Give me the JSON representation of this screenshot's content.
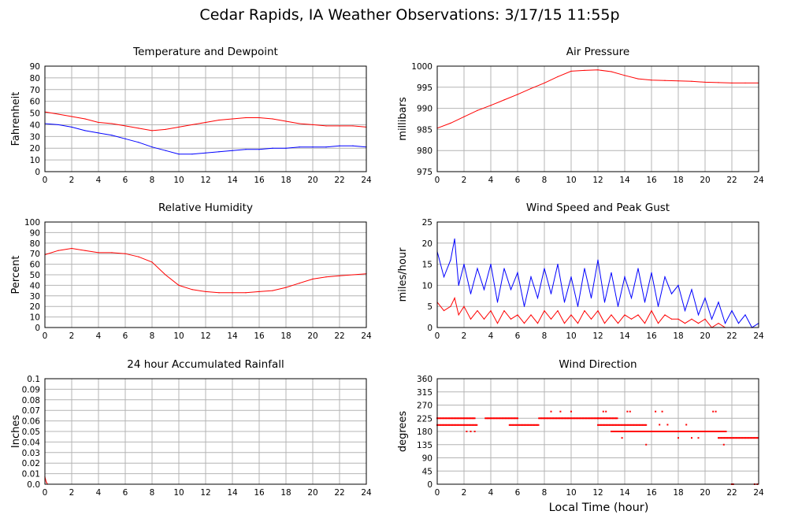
{
  "page": {
    "title": "Cedar Rapids, IA Weather Observations: 3/17/15 11:55p",
    "xlabel": "Local Time (hour)"
  },
  "colors": {
    "red": "#ff0000",
    "blue": "#0000ff",
    "grid": "#b4b4b4",
    "frame": "#000000"
  },
  "chart_data": [
    {
      "id": "temp",
      "type": "line",
      "title": "Temperature and Dewpoint",
      "ylabel": "Fahrenheit",
      "xlim": [
        0,
        24
      ],
      "ylim": [
        0,
        90
      ],
      "xticks": [
        "0",
        "2",
        "4",
        "6",
        "8",
        "10",
        "12",
        "14",
        "16",
        "18",
        "20",
        "22",
        "24"
      ],
      "yticks": [
        "0",
        "10",
        "20",
        "30",
        "40",
        "50",
        "60",
        "70",
        "80",
        "90"
      ],
      "grid": true,
      "series": [
        {
          "color": "#ff0000",
          "x": [
            0,
            1,
            2,
            3,
            4,
            5,
            6,
            7,
            8,
            9,
            10,
            11,
            12,
            13,
            14,
            15,
            16,
            17,
            18,
            19,
            20,
            21,
            22,
            23,
            24
          ],
          "y": [
            51,
            49,
            47,
            45,
            42,
            41,
            39,
            37,
            35,
            36,
            38,
            40,
            42,
            44,
            45,
            46,
            46,
            45,
            43,
            41,
            40,
            39,
            39,
            39,
            38
          ]
        },
        {
          "color": "#0000ff",
          "x": [
            0,
            1,
            2,
            3,
            4,
            5,
            6,
            7,
            8,
            9,
            10,
            11,
            12,
            13,
            14,
            15,
            16,
            17,
            18,
            19,
            20,
            21,
            22,
            23,
            24
          ],
          "y": [
            41,
            40,
            38,
            35,
            33,
            31,
            28,
            25,
            21,
            18,
            15,
            15,
            16,
            17,
            18,
            19,
            19,
            20,
            20,
            21,
            21,
            21,
            22,
            22,
            21
          ]
        }
      ]
    },
    {
      "id": "pressure",
      "type": "line",
      "title": "Air Pressure",
      "ylabel": "millibars",
      "xlim": [
        0,
        24
      ],
      "ylim": [
        975,
        1000
      ],
      "xticks": [
        "0",
        "2",
        "4",
        "6",
        "8",
        "10",
        "12",
        "14",
        "16",
        "18",
        "20",
        "22",
        "24"
      ],
      "yticks": [
        "975",
        "980",
        "985",
        "990",
        "995",
        "1000"
      ],
      "grid": true,
      "series": [
        {
          "color": "#ff0000",
          "x": [
            0,
            1,
            2,
            3,
            4,
            5,
            6,
            7,
            8,
            9,
            10,
            11,
            12,
            13,
            14,
            15,
            16,
            17,
            18,
            19,
            20,
            21,
            22,
            23,
            24
          ],
          "y": [
            985.3,
            986.5,
            988,
            989.5,
            990.7,
            992,
            993.3,
            994.7,
            996,
            997.5,
            998.8,
            999,
            999.1,
            998.7,
            997.8,
            997,
            996.7,
            996.6,
            996.5,
            996.4,
            996.2,
            996.1,
            996,
            996,
            996
          ]
        }
      ]
    },
    {
      "id": "humidity",
      "type": "line",
      "title": "Relative Humidity",
      "ylabel": "Percent",
      "xlim": [
        0,
        24
      ],
      "ylim": [
        0,
        100
      ],
      "xticks": [
        "0",
        "2",
        "4",
        "6",
        "8",
        "10",
        "12",
        "14",
        "16",
        "18",
        "20",
        "22",
        "24"
      ],
      "yticks": [
        "0",
        "10",
        "20",
        "30",
        "40",
        "50",
        "60",
        "70",
        "80",
        "90",
        "100"
      ],
      "grid": true,
      "series": [
        {
          "color": "#ff0000",
          "x": [
            0,
            1,
            2,
            3,
            4,
            5,
            6,
            7,
            8,
            9,
            10,
            11,
            12,
            13,
            14,
            15,
            16,
            17,
            18,
            19,
            20,
            21,
            22,
            23,
            24
          ],
          "y": [
            69,
            73,
            75,
            73,
            71,
            71,
            70,
            67,
            62,
            50,
            40,
            36,
            34,
            33,
            33,
            33,
            34,
            35,
            38,
            42,
            46,
            48,
            49,
            50,
            51
          ]
        }
      ]
    },
    {
      "id": "wind",
      "type": "line",
      "title": "Wind Speed and Peak Gust",
      "ylabel": "miles/hour",
      "xlim": [
        0,
        24
      ],
      "ylim": [
        0,
        25
      ],
      "xticks": [
        "0",
        "2",
        "4",
        "6",
        "8",
        "10",
        "12",
        "14",
        "16",
        "18",
        "20",
        "22",
        "24"
      ],
      "yticks": [
        "0",
        "5",
        "10",
        "15",
        "20",
        "25"
      ],
      "grid": true,
      "series": [
        {
          "color": "#0000ff",
          "x": [
            0,
            0.5,
            1,
            1.3,
            1.6,
            2,
            2.5,
            3,
            3.5,
            4,
            4.5,
            5,
            5.5,
            6,
            6.5,
            7,
            7.5,
            8,
            8.5,
            9,
            9.5,
            10,
            10.5,
            11,
            11.5,
            12,
            12.5,
            13,
            13.5,
            14,
            14.5,
            15,
            15.5,
            16,
            16.5,
            17,
            17.5,
            18,
            18.5,
            19,
            19.5,
            20,
            20.5,
            21,
            21.5,
            22,
            22.5,
            23,
            23.5,
            24
          ],
          "y": [
            18,
            12,
            16,
            21,
            10,
            15,
            8,
            14,
            9,
            15,
            6,
            14,
            9,
            13,
            5,
            12,
            7,
            14,
            8,
            15,
            6,
            12,
            5,
            14,
            7,
            16,
            6,
            13,
            5,
            12,
            7,
            14,
            6,
            13,
            5,
            12,
            8,
            10,
            4,
            9,
            3,
            7,
            2,
            6,
            1,
            4,
            1,
            3,
            0,
            1
          ]
        },
        {
          "color": "#ff0000",
          "x": [
            0,
            0.5,
            1,
            1.3,
            1.6,
            2,
            2.5,
            3,
            3.5,
            4,
            4.5,
            5,
            5.5,
            6,
            6.5,
            7,
            7.5,
            8,
            8.5,
            9,
            9.5,
            10,
            10.5,
            11,
            11.5,
            12,
            12.5,
            13,
            13.5,
            14,
            14.5,
            15,
            15.5,
            16,
            16.5,
            17,
            17.5,
            18,
            18.5,
            19,
            19.5,
            20,
            20.5,
            21,
            21.5,
            22,
            22.5,
            23,
            23.5,
            24
          ],
          "y": [
            6,
            4,
            5,
            7,
            3,
            5,
            2,
            4,
            2,
            4,
            1,
            4,
            2,
            3,
            1,
            3,
            1,
            4,
            2,
            4,
            1,
            3,
            1,
            4,
            2,
            4,
            1,
            3,
            1,
            3,
            2,
            3,
            1,
            4,
            1,
            3,
            2,
            2,
            1,
            2,
            1,
            2,
            0,
            1,
            0,
            0,
            0,
            0,
            0,
            0
          ]
        }
      ]
    },
    {
      "id": "rain",
      "type": "line",
      "title": "24 hour Accumulated Rainfall",
      "ylabel": "Inches",
      "xlim": [
        0,
        24
      ],
      "ylim": [
        0,
        0.1
      ],
      "xticks": [
        "0",
        "2",
        "4",
        "6",
        "8",
        "10",
        "12",
        "14",
        "16",
        "18",
        "20",
        "22",
        "24"
      ],
      "yticks": [
        "0.0",
        "0.01",
        "0.02",
        "0.03",
        "0.04",
        "0.05",
        "0.06",
        "0.07",
        "0.08",
        "0.09",
        "0.1"
      ],
      "grid": true,
      "series": [
        {
          "color": "#ff0000",
          "x": [
            0,
            0.1,
            0.2,
            24
          ],
          "y": [
            0.007,
            0.002,
            0,
            0
          ]
        }
      ]
    },
    {
      "id": "direction",
      "type": "scatter",
      "title": "Wind Direction",
      "ylabel": "degrees",
      "xlim": [
        0,
        24
      ],
      "ylim": [
        0,
        360
      ],
      "xticks": [
        "0",
        "2",
        "4",
        "6",
        "8",
        "10",
        "12",
        "14",
        "16",
        "18",
        "20",
        "22",
        "24"
      ],
      "yticks": [
        "0",
        "45",
        "90",
        "135",
        "180",
        "225",
        "270",
        "315",
        "360"
      ],
      "grid": true,
      "series": [
        {
          "color": "#ff0000",
          "segments": [
            {
              "x0": 0,
              "x1": 2.8,
              "y": 225
            },
            {
              "x0": 0,
              "x1": 3.0,
              "y": 202
            },
            {
              "x0": 3.6,
              "x1": 6.0,
              "y": 225
            },
            {
              "x0": 5.4,
              "x1": 7.6,
              "y": 202
            },
            {
              "x0": 7.6,
              "x1": 12.0,
              "y": 225
            },
            {
              "x0": 12.0,
              "x1": 13.5,
              "y": 225
            },
            {
              "x0": 12.0,
              "x1": 15.6,
              "y": 202
            },
            {
              "x0": 13.0,
              "x1": 16.2,
              "y": 180
            },
            {
              "x0": 16.2,
              "x1": 21.0,
              "y": 180
            },
            {
              "x0": 20.2,
              "x1": 21.6,
              "y": 180
            },
            {
              "x0": 21.0,
              "x1": 24.0,
              "y": 158
            }
          ],
          "points_x": [
            2.2,
            2.5,
            2.8,
            8.5,
            9.2,
            10.0,
            12.4,
            12.6,
            13.5,
            13.8,
            14.2,
            14.4,
            15.6,
            16.3,
            16.6,
            16.8,
            17.2,
            18.0,
            18.6,
            19.0,
            19.5,
            20.6,
            20.8,
            21.0,
            21.4,
            22.0,
            22.1,
            23.7,
            23.9
          ],
          "points_y": [
            180,
            180,
            180,
            248,
            248,
            248,
            248,
            248,
            180,
            158,
            248,
            248,
            135,
            248,
            203,
            248,
            203,
            158,
            203,
            158,
            158,
            248,
            248,
            180,
            135,
            0,
            0,
            0,
            0
          ]
        }
      ]
    }
  ]
}
